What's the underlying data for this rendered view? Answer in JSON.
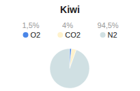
{
  "chart_data": {
    "type": "pie",
    "title": "Kiwi",
    "categories": [
      "O2",
      "CO2",
      "N2"
    ],
    "values": [
      1.5,
      4,
      94.5
    ],
    "value_labels": [
      "1,5%",
      "4%",
      "94,5%"
    ],
    "colors": [
      "#4a86e8",
      "#fff2cc",
      "#d0e0e3"
    ],
    "legend": "top"
  }
}
